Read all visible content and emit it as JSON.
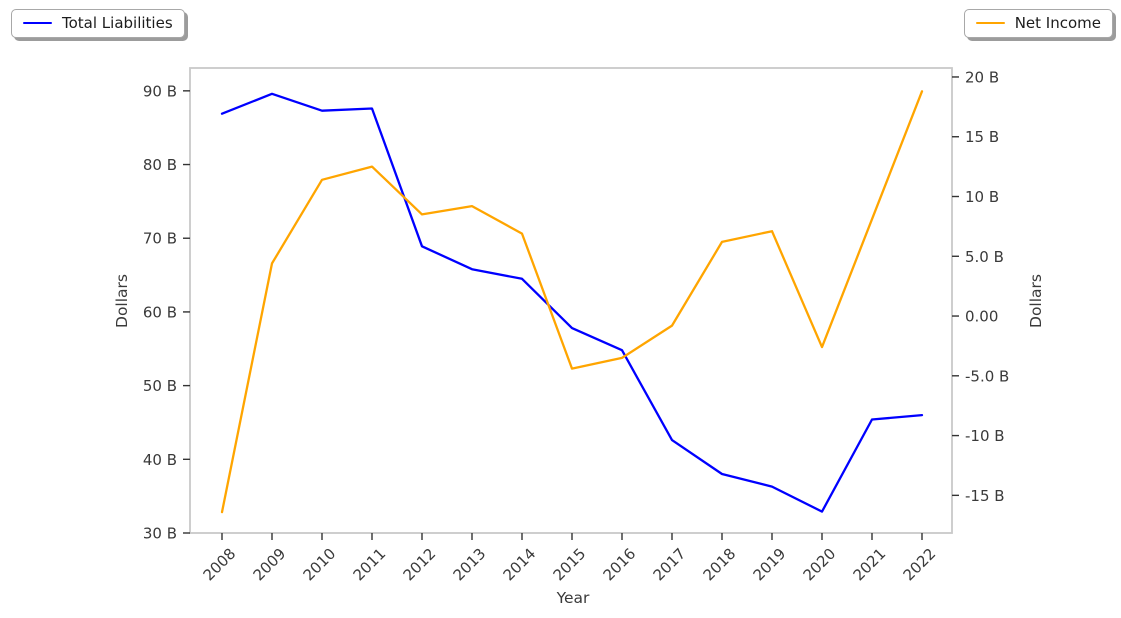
{
  "chart_data": {
    "type": "line",
    "x": [
      "2008",
      "2009",
      "2010",
      "2011",
      "2012",
      "2013",
      "2014",
      "2015",
      "2016",
      "2017",
      "2018",
      "2019",
      "2020",
      "2021",
      "2022"
    ],
    "xlabel": "Year",
    "series": [
      {
        "name": "Total Liabilities",
        "axis": "left",
        "color": "#0000ff",
        "values": [
          86.9,
          89.6,
          87.3,
          87.6,
          68.9,
          65.8,
          64.5,
          57.8,
          54.8,
          42.6,
          38.0,
          36.3,
          32.9,
          45.4,
          46.0
        ]
      },
      {
        "name": "Net Income",
        "axis": "right",
        "color": "#ffa500",
        "values": [
          -16.4,
          4.4,
          11.4,
          12.5,
          8.5,
          9.2,
          6.9,
          -4.4,
          -3.5,
          -0.8,
          6.2,
          7.1,
          -2.6,
          8.1,
          18.8
        ]
      }
    ],
    "left_axis": {
      "label": "Dollars",
      "unit": "B",
      "min": 30,
      "max": 93.1,
      "tick_values": [
        90,
        80,
        70,
        60,
        50,
        40,
        30
      ],
      "tick_labels": [
        "90 B",
        "80 B",
        "70 B",
        "60 B",
        "50 B",
        "40 B",
        "30 B"
      ]
    },
    "right_axis": {
      "label": "Dollars",
      "unit": "B",
      "min": -18.15,
      "max": 20.75,
      "tick_values": [
        20,
        15,
        10,
        5,
        0,
        -5,
        -10,
        -15
      ],
      "tick_labels": [
        "20 B",
        "15 B",
        "10 B",
        "5.0 B",
        "0.00",
        "-5.0 B",
        "-10 B",
        "-15 B"
      ]
    },
    "legend": [
      {
        "label": "Total Liabilities",
        "color": "#0000ff",
        "position": "top-left"
      },
      {
        "label": "Net Income",
        "color": "#ffa500",
        "position": "top-right"
      }
    ],
    "grid": "off",
    "title": ""
  },
  "style": {
    "spine_color": "#c9c9c9",
    "tick_color": "#333333",
    "text_color": "#3a3a3a",
    "background": "#ffffff"
  }
}
